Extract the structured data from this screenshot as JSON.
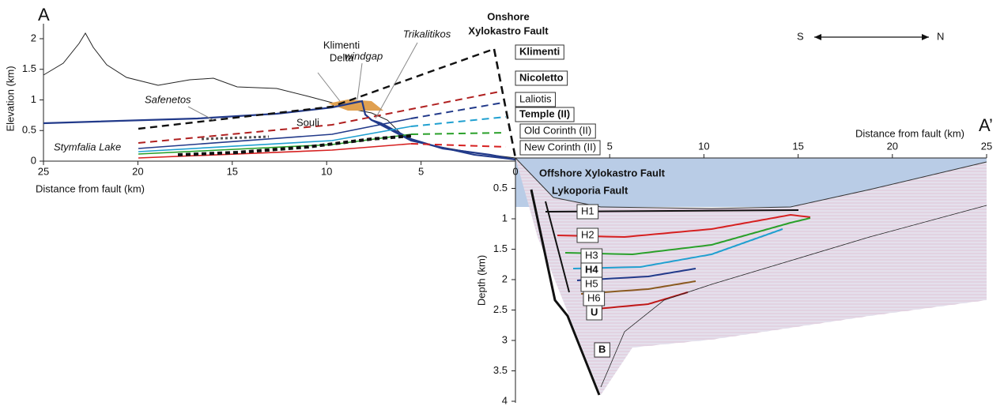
{
  "panel_labels": {
    "start": "A",
    "end": "A’"
  },
  "compass": {
    "south": "S",
    "north": "N"
  },
  "profile": {
    "y_axis_title": "Elevation (km)",
    "x_axis_title": "Distance from fault (km)",
    "yticks": [
      0,
      0.5,
      1,
      1.5,
      2
    ],
    "xticks": [
      25,
      20,
      15,
      10,
      5,
      0
    ],
    "places": {
      "safenetos": "Safenetos",
      "stymfalia": "Stymfalia Lake",
      "klimenti_delta": [
        "Klimenti",
        "Delta"
      ],
      "windgap": "windgap",
      "trikalitikos": "Trikalitikos",
      "souli": "Souli"
    },
    "fault": [
      "Onshore",
      "Xylokastro Fault"
    ],
    "terraces": [
      "Klimenti",
      "Nicoletto",
      "Laliotis",
      "Temple (II)",
      "Old Corinth (II)",
      "New Corinth (II)"
    ]
  },
  "section": {
    "x_axis_title": "Distance from fault (km)",
    "y_axis_title": "Depth (km)",
    "xticks": [
      5,
      10,
      15,
      20,
      25
    ],
    "yticks": [
      0.5,
      1,
      1.5,
      2,
      2.5,
      3,
      3.5,
      4
    ],
    "faults": [
      "Offshore Xylokastro Fault",
      "Lykoporia Fault"
    ],
    "horizons": [
      "H1",
      "H2",
      "H3",
      "H4",
      "H5",
      "H6",
      "U",
      "B"
    ]
  }
}
